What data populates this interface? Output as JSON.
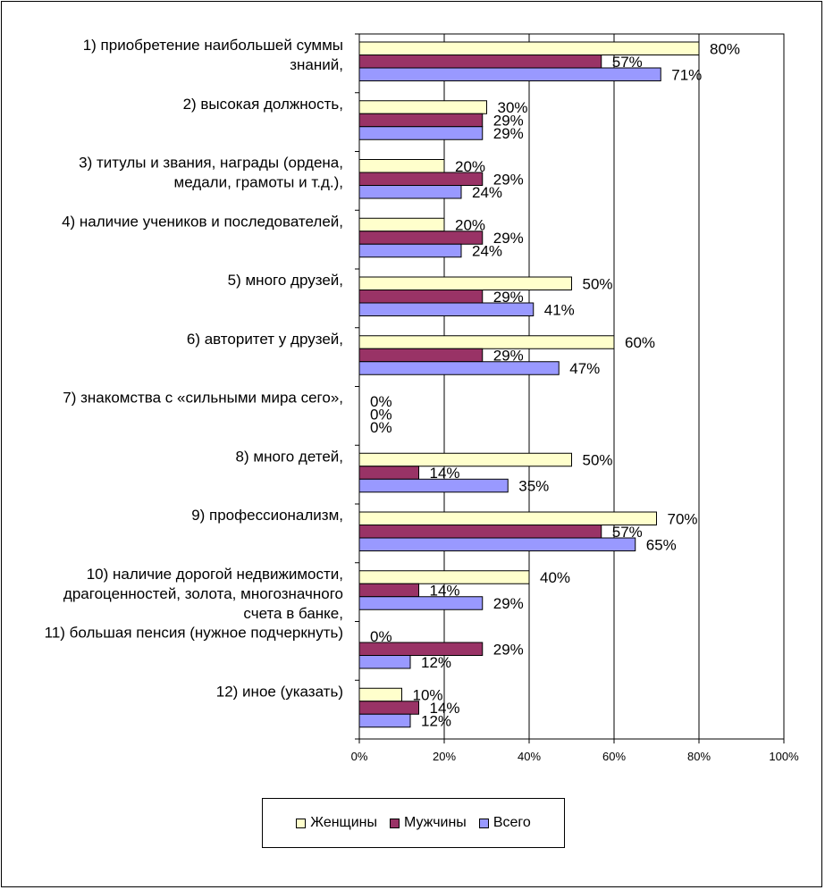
{
  "chart_data": {
    "type": "bar",
    "orientation": "horizontal",
    "categories": [
      [
        "1) приобретение наибольшей суммы",
        "знаний,"
      ],
      [
        "2) высокая должность,"
      ],
      [
        "3) титулы и звания, награды (ордена,",
        "медали, грамоты и т.д.),"
      ],
      [
        "4) наличие учеников и последователей,"
      ],
      [
        "5) много друзей,"
      ],
      [
        "6) авторитет у друзей,"
      ],
      [
        "7) знакомства с «сильными мира сего»,"
      ],
      [
        "8) много детей,"
      ],
      [
        "9) профессионализм,"
      ],
      [
        "10) наличие дорогой недвижимости,",
        "драгоценностей, золота, многозначного",
        "счета в банке,"
      ],
      [
        "11) большая пенсия (нужное подчеркнуть)"
      ],
      [
        "12) иное (указать)"
      ]
    ],
    "series": [
      {
        "name": "Женщины",
        "color": "#ffffcc",
        "values": [
          80,
          30,
          20,
          20,
          50,
          60,
          0,
          50,
          70,
          40,
          0,
          10
        ]
      },
      {
        "name": "Мужчины",
        "color": "#993366",
        "values": [
          57,
          29,
          29,
          29,
          29,
          29,
          0,
          14,
          57,
          14,
          29,
          14
        ]
      },
      {
        "name": "Всего",
        "color": "#9999ff",
        "values": [
          71,
          29,
          24,
          24,
          41,
          47,
          0,
          35,
          65,
          29,
          12,
          12
        ]
      }
    ],
    "xlim": [
      0,
      100
    ],
    "xticks": [
      "0%",
      "20%",
      "40%",
      "60%",
      "80%",
      "100%"
    ],
    "value_suffix": "%",
    "grid": true,
    "legend_position": "bottom"
  }
}
